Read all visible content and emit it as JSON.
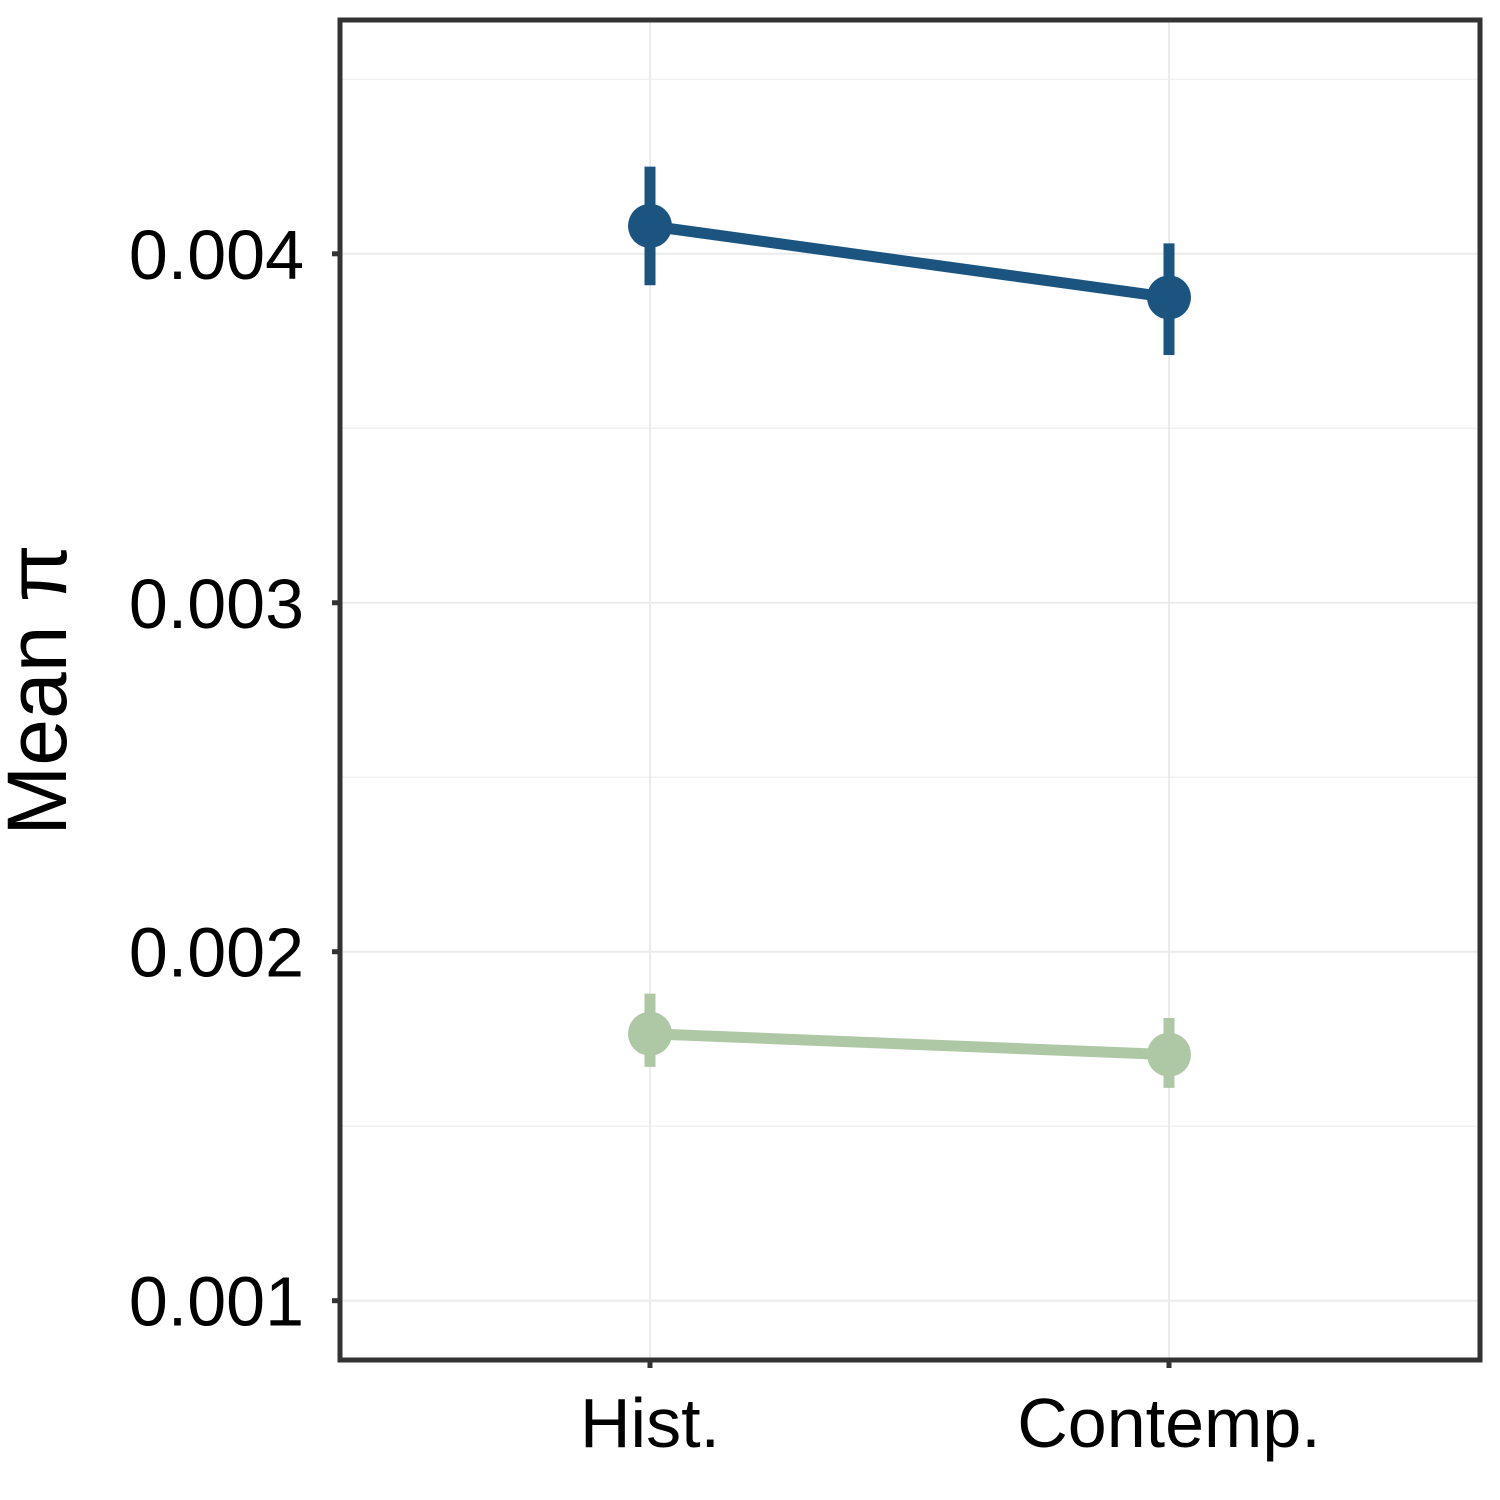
{
  "chart_data": {
    "type": "line",
    "title": "",
    "xlabel": "",
    "ylabel": "Mean π",
    "categories": [
      "Hist.",
      "Contemp."
    ],
    "ylim": [
      0.00083,
      0.00467
    ],
    "yticks": [
      0.001,
      0.002,
      0.003,
      0.004
    ],
    "ytick_labels": [
      "0.001",
      "0.002",
      "0.003",
      "0.004"
    ],
    "grid": true,
    "series": [
      {
        "color": "#1b557f",
        "values": [
          0.00408,
          0.003875
        ],
        "error_low": [
          0.00391,
          0.00371
        ],
        "error_high": [
          0.00425,
          0.00403
        ]
      },
      {
        "color": "#aec8a6",
        "values": [
          0.001765,
          0.001705
        ],
        "error_low": [
          0.00167,
          0.00161
        ],
        "error_high": [
          0.00188,
          0.00181
        ]
      }
    ]
  }
}
